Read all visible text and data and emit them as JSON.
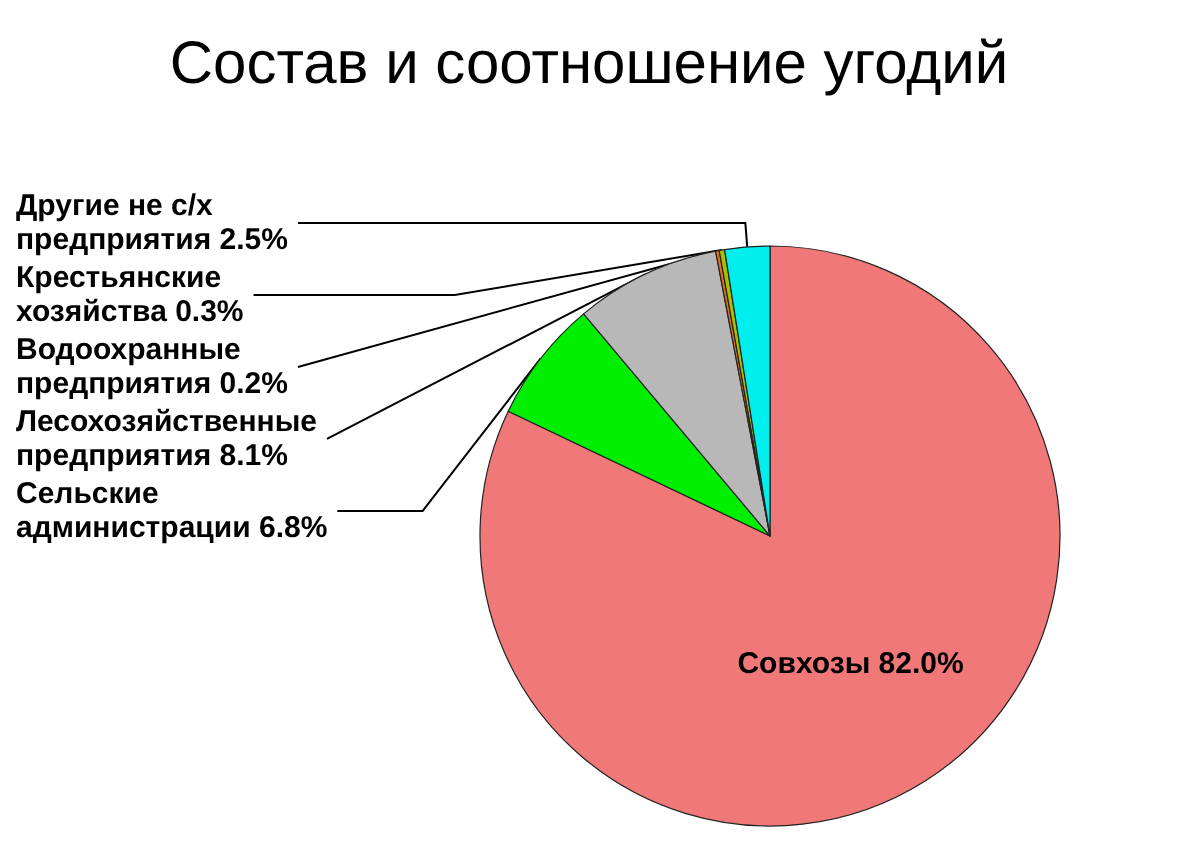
{
  "chart_data": {
    "type": "pie",
    "title": "Состав и соотношение угодий",
    "categories": [
      "Совхозы",
      "Сельские администрации",
      "Лесохозяйственные предприятия",
      "Водоохранные предприятия",
      "Крестьянские хозяйства",
      "Другие не с/х предприятия"
    ],
    "values": [
      82.0,
      6.8,
      8.1,
      0.2,
      0.3,
      2.5
    ],
    "value_labels": [
      "82.0%",
      "6.8%",
      "8.1%",
      "0.2%",
      "0.3%",
      "2.5%"
    ],
    "colors": [
      "#f07878",
      "#00ee00",
      "#b8b8b8",
      "#e07020",
      "#a8c000",
      "#00eeee"
    ]
  }
}
